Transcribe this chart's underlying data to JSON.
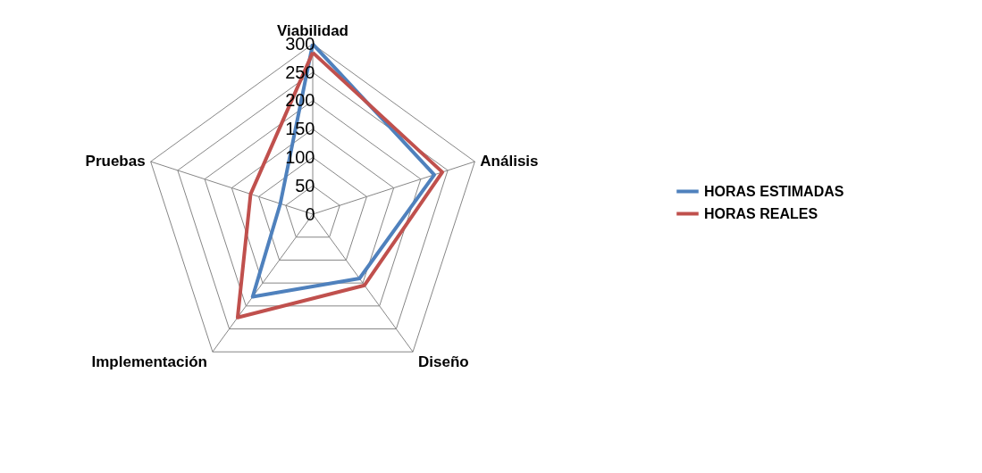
{
  "chart_data": {
    "type": "radar",
    "categories": [
      "Viabilidad",
      "Análisis",
      "Diseño",
      "Implementación",
      "Pruebas"
    ],
    "series": [
      {
        "name": "HORAS ESTIMADAS",
        "color": "#4f81bd",
        "values": [
          300,
          225,
          140,
          180,
          60
        ]
      },
      {
        "name": "HORAS REALES",
        "color": "#c0504d",
        "values": [
          285,
          240,
          155,
          225,
          115
        ]
      }
    ],
    "ylim": [
      0,
      300
    ],
    "yticks": [
      0,
      50,
      100,
      150,
      200,
      250,
      300
    ],
    "grid": true,
    "legend": "right"
  }
}
